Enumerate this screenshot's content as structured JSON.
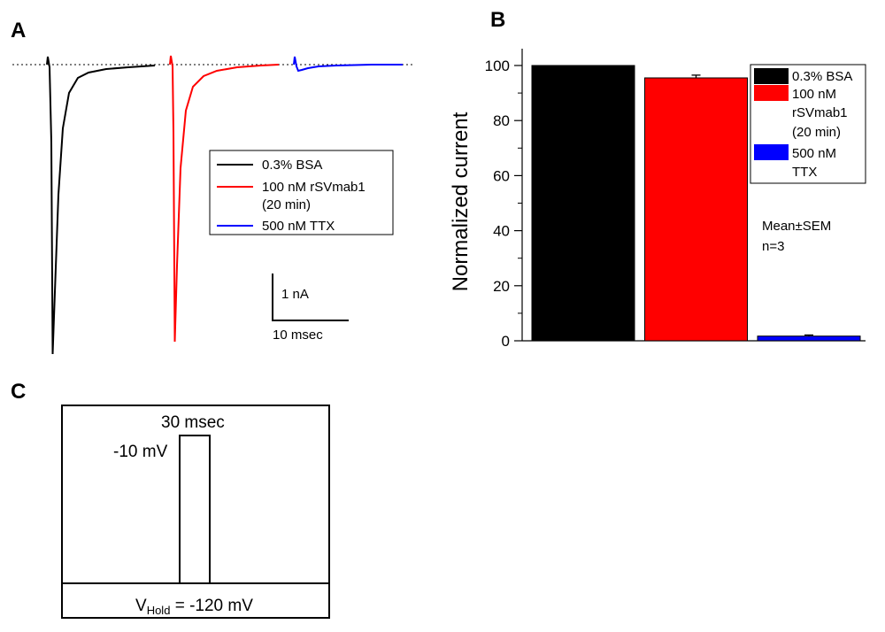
{
  "panel_a": {
    "letter": "A",
    "legend": [
      {
        "label": "0.3% BSA",
        "color": "#000000"
      },
      {
        "label": "100 nM rSVmab1",
        "label2": "(20 min)",
        "color": "#ff0000"
      },
      {
        "label": "500 nM TTX",
        "color": "#0000ff"
      }
    ],
    "scale_bar": {
      "current": "1 nA",
      "time": "10 msec"
    }
  },
  "panel_b": {
    "letter": "B",
    "annotation": {
      "line1": "Mean±SEM",
      "line2": "n=3"
    },
    "legend": [
      {
        "lines": [
          "0.3% BSA"
        ],
        "color": "#000000"
      },
      {
        "lines": [
          "100 nM",
          "rSVmab1",
          "(20 min)"
        ],
        "color": "#ff0000"
      },
      {
        "lines": [
          "500 nM",
          "TTX"
        ],
        "color": "#0000ff"
      }
    ]
  },
  "panel_c": {
    "letter": "C",
    "pulse_duration": "30 msec",
    "pulse_voltage": "-10 mV",
    "hold_prefix": "V",
    "hold_sub": "Hold",
    "hold_value": " = -120 mV"
  },
  "chart_data": {
    "type": "bar",
    "title": "",
    "xlabel": "",
    "ylabel": "Normalized current",
    "ylim": [
      0,
      100
    ],
    "yticks": [
      0,
      20,
      40,
      60,
      80,
      100
    ],
    "categories": [
      "0.3% BSA",
      "100 nM rSVmab1 (20 min)",
      "500 nM TTX"
    ],
    "values": [
      100,
      95.5,
      1.7
    ],
    "errors": [
      0,
      1.0,
      0.4
    ],
    "colors": [
      "#000000",
      "#ff0000",
      "#0000ff"
    ],
    "legend_position": "top-right"
  }
}
